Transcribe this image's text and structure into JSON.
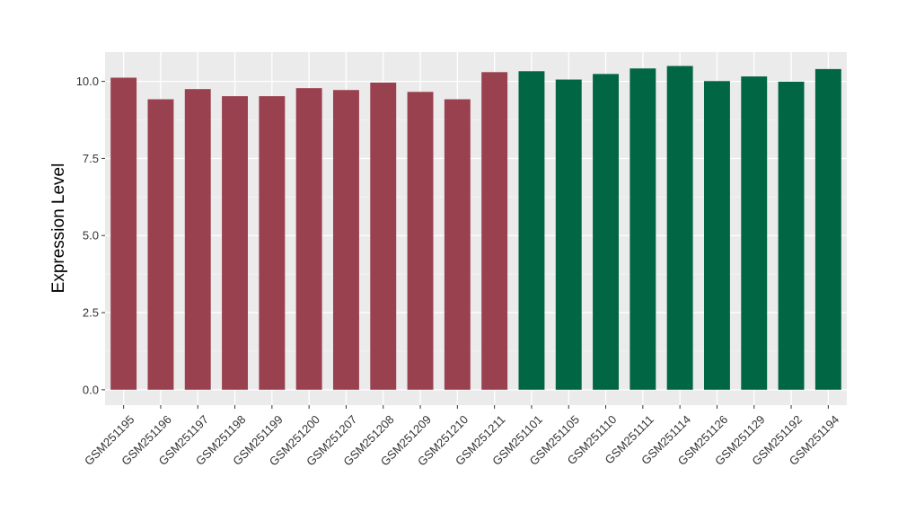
{
  "chart_data": {
    "type": "bar",
    "title": "",
    "xlabel": "",
    "ylabel": "Expression Level",
    "ylim": [
      -0.5,
      10.95
    ],
    "yticks": [
      0.0,
      2.5,
      5.0,
      7.5,
      10.0
    ],
    "ytick_labels": [
      "0.0",
      "2.5",
      "5.0",
      "7.5",
      "10.0"
    ],
    "grid": true,
    "legend": "none",
    "panel_background": "#ebebeb",
    "categories": [
      "GSM251195",
      "GSM251196",
      "GSM251197",
      "GSM251198",
      "GSM251199",
      "GSM251200",
      "GSM251207",
      "GSM251208",
      "GSM251209",
      "GSM251210",
      "GSM251211",
      "GSM251101",
      "GSM251105",
      "GSM251110",
      "GSM251111",
      "GSM251114",
      "GSM251126",
      "GSM251129",
      "GSM251192",
      "GSM251194"
    ],
    "values": [
      10.12,
      9.42,
      9.75,
      9.52,
      9.52,
      9.78,
      9.72,
      9.96,
      9.66,
      9.42,
      10.3,
      10.33,
      10.06,
      10.24,
      10.42,
      10.5,
      10.01,
      10.16,
      9.99,
      10.4
    ],
    "colors": [
      "#99414f",
      "#99414f",
      "#99414f",
      "#99414f",
      "#99414f",
      "#99414f",
      "#99414f",
      "#99414f",
      "#99414f",
      "#99414f",
      "#99414f",
      "#006644",
      "#006644",
      "#006644",
      "#006644",
      "#006644",
      "#006644",
      "#006644",
      "#006644",
      "#006644"
    ]
  }
}
